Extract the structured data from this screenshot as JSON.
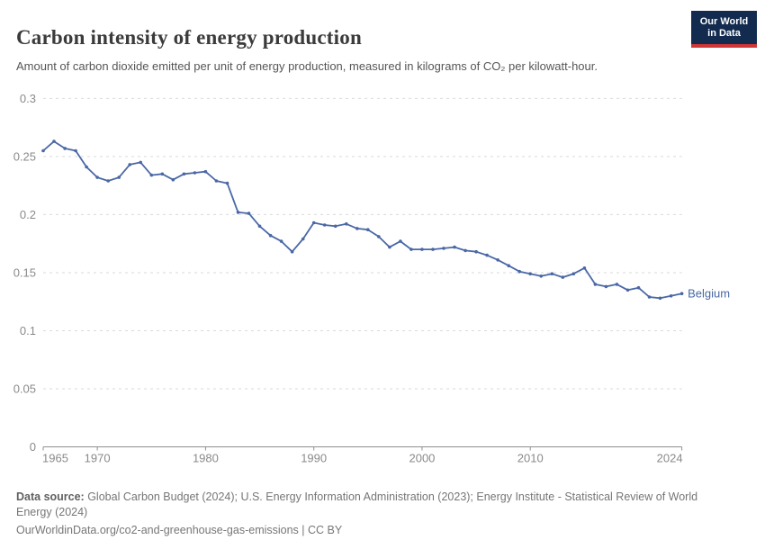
{
  "header": {
    "title": "Carbon intensity of energy production",
    "subtitle": "Amount of carbon dioxide emitted per unit of energy production, measured in kilograms of CO₂ per kilowatt-hour."
  },
  "logo": {
    "line1": "Our World",
    "line2": "in Data",
    "bg_color": "#122b4e",
    "accent_color": "#cf3637"
  },
  "chart_data": {
    "type": "line",
    "title": "Carbon intensity of energy production",
    "xlabel": "",
    "ylabel": "kilograms of CO₂ per kilowatt-hour",
    "ylim": [
      0,
      0.3
    ],
    "xlim": [
      1965,
      2024
    ],
    "grid": "horizontal-dashed",
    "legend_position": "end-of-line",
    "line_color": "#4a68a5",
    "x": [
      1965,
      1966,
      1967,
      1968,
      1969,
      1970,
      1971,
      1972,
      1973,
      1974,
      1975,
      1976,
      1977,
      1978,
      1979,
      1980,
      1981,
      1982,
      1983,
      1984,
      1985,
      1986,
      1987,
      1988,
      1989,
      1990,
      1991,
      1992,
      1993,
      1994,
      1995,
      1996,
      1997,
      1998,
      1999,
      2000,
      2001,
      2002,
      2003,
      2004,
      2005,
      2006,
      2007,
      2008,
      2009,
      2010,
      2011,
      2012,
      2013,
      2014,
      2015,
      2016,
      2017,
      2018,
      2019,
      2020,
      2021,
      2022,
      2023,
      2024
    ],
    "series": [
      {
        "name": "Belgium",
        "color": "#4a68a5",
        "values": [
          0.255,
          0.263,
          0.257,
          0.255,
          0.241,
          0.232,
          0.229,
          0.232,
          0.243,
          0.245,
          0.234,
          0.235,
          0.23,
          0.235,
          0.236,
          0.237,
          0.229,
          0.227,
          0.202,
          0.201,
          0.19,
          0.182,
          0.177,
          0.168,
          0.179,
          0.193,
          0.191,
          0.19,
          0.192,
          0.188,
          0.187,
          0.181,
          0.172,
          0.177,
          0.17,
          0.17,
          0.17,
          0.171,
          0.172,
          0.169,
          0.168,
          0.165,
          0.161,
          0.156,
          0.151,
          0.149,
          0.147,
          0.149,
          0.146,
          0.149,
          0.154,
          0.14,
          0.138,
          0.14,
          0.135,
          0.137,
          0.129,
          0.128,
          0.13,
          0.132
        ]
      }
    ],
    "yticks": [
      {
        "value": 0,
        "label": "0"
      },
      {
        "value": 0.05,
        "label": "0.05"
      },
      {
        "value": 0.1,
        "label": "0.1"
      },
      {
        "value": 0.15,
        "label": "0.15"
      },
      {
        "value": 0.2,
        "label": "0.2"
      },
      {
        "value": 0.25,
        "label": "0.25"
      },
      {
        "value": 0.3,
        "label": "0.3"
      }
    ],
    "xticks": [
      {
        "value": 1965,
        "label": "1965"
      },
      {
        "value": 1970,
        "label": "1970"
      },
      {
        "value": 1980,
        "label": "1980"
      },
      {
        "value": 1990,
        "label": "1990"
      },
      {
        "value": 2000,
        "label": "2000"
      },
      {
        "value": 2010,
        "label": "2010"
      },
      {
        "value": 2024,
        "label": "2024"
      }
    ]
  },
  "footer": {
    "source_label": "Data source:",
    "source_text": " Global Carbon Budget (2024); U.S. Energy Information Administration (2023); Energy Institute - Statistical Review of World Energy (2024)",
    "citation": "OurWorldinData.org/co2-and-greenhouse-gas-emissions | CC BY"
  },
  "colors": {
    "axis": "#8f8f8f",
    "grid": "#d9d9d9",
    "tick_label": "#8a8a8a",
    "title": "#3b3b3b",
    "subtitle": "#565656",
    "footer": "#767676"
  }
}
